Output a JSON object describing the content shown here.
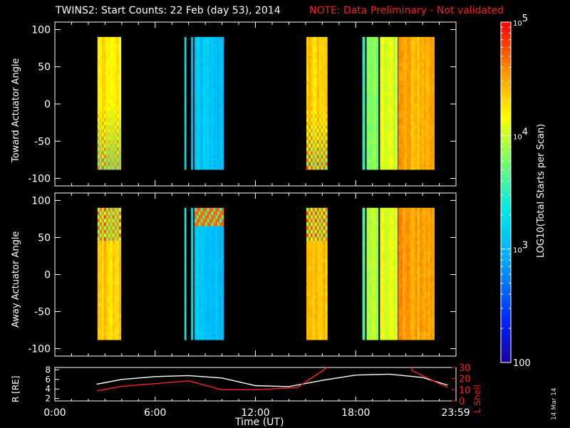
{
  "title": {
    "main": "TWINS2: Start Counts: 22 Feb (day  53), 2014",
    "note": "NOTE: Data Preliminary - Not validated"
  },
  "colors": {
    "note": "#ff1a1a",
    "r_line": "#ffffff",
    "l_shell_line": "#ff2020",
    "background": "#000000"
  },
  "stamp": "14 Mar 14",
  "chart_data": [
    {
      "type": "heatmap",
      "panel": "toward",
      "ylabel": "Toward Actuator Angle",
      "ylim": [
        -110,
        110
      ],
      "yticks": [
        "100",
        "50",
        "0",
        "-50",
        "-100"
      ],
      "angle_range": [
        -88,
        90
      ],
      "x_unit": "hours UT",
      "blocks": [
        {
          "start": 2.55,
          "end": 3.95,
          "level": 4.25,
          "pattern": "banded"
        },
        {
          "start": 7.75,
          "end": 7.85,
          "level": 3.3
        },
        {
          "start": 8.15,
          "end": 8.25,
          "level": 3.2
        },
        {
          "start": 8.35,
          "end": 10.1,
          "level": 3.1
        },
        {
          "start": 15.05,
          "end": 16.3,
          "level": 4.35,
          "pattern": "banded"
        },
        {
          "start": 18.4,
          "end": 18.55,
          "level": 3.5
        },
        {
          "start": 18.65,
          "end": 19.35,
          "level": 3.8
        },
        {
          "start": 19.45,
          "end": 20.5,
          "level": 4.05
        },
        {
          "start": 20.55,
          "end": 22.7,
          "level": 4.45
        }
      ]
    },
    {
      "type": "heatmap",
      "panel": "away",
      "ylabel": "Away Actuator Angle",
      "ylim": [
        -110,
        110
      ],
      "yticks": [
        "100",
        "50",
        "0",
        "-50",
        "-100"
      ],
      "angle_range": [
        -88,
        90
      ],
      "x_unit": "hours UT",
      "blocks": [
        {
          "start": 2.55,
          "end": 3.95,
          "level": 4.35,
          "pattern": "top-banded"
        },
        {
          "start": 7.75,
          "end": 7.85,
          "level": 3.35
        },
        {
          "start": 8.15,
          "end": 8.25,
          "level": 3.25
        },
        {
          "start": 8.35,
          "end": 10.1,
          "level": 3.1,
          "pattern": "top-hot"
        },
        {
          "start": 15.05,
          "end": 16.3,
          "level": 4.4,
          "pattern": "top-banded"
        },
        {
          "start": 18.4,
          "end": 18.55,
          "level": 3.6
        },
        {
          "start": 18.65,
          "end": 19.35,
          "level": 3.95
        },
        {
          "start": 19.45,
          "end": 20.5,
          "level": 4.1
        },
        {
          "start": 20.55,
          "end": 22.7,
          "level": 4.5
        }
      ]
    },
    {
      "type": "line",
      "panel": "orbit",
      "ylabel": "R [RE]",
      "ylim": [
        1.5,
        8.5
      ],
      "yticks": [
        "8",
        "6",
        "4",
        "2"
      ],
      "y2label": "L Shell",
      "y2lim": [
        0,
        30
      ],
      "y2ticks": [
        "30",
        "20",
        "10",
        "0"
      ],
      "xlabel": "Time (UT)",
      "xlim": [
        0,
        24
      ],
      "xticks": [
        "0:00",
        "6:00",
        "12:00",
        "18:00",
        "23:59"
      ],
      "xtick_values": [
        0,
        6,
        12,
        18,
        23.98
      ],
      "series": [
        {
          "axis": "left",
          "x": [
            2.5,
            4,
            6,
            8,
            10,
            12,
            14,
            16,
            18,
            20,
            22,
            23.5
          ],
          "y": [
            5.0,
            6.0,
            6.6,
            6.8,
            6.3,
            4.7,
            4.5,
            5.8,
            6.9,
            7.1,
            6.4,
            4.8
          ]
        },
        {
          "axis": "right",
          "x": [
            2.5,
            4,
            8,
            10,
            12,
            14.5,
            15.5,
            16.3,
            16.4,
            21.3,
            21.4,
            23.5
          ],
          "y": [
            9,
            13,
            18,
            10,
            10,
            12,
            22,
            30,
            null,
            30,
            27,
            12
          ]
        }
      ]
    }
  ],
  "colorbar": {
    "label": "LOG10(Total Starts per Scan)",
    "ticks": [
      "10^5",
      "10^4",
      "10^3",
      "100"
    ],
    "range": [
      2,
      5
    ]
  }
}
